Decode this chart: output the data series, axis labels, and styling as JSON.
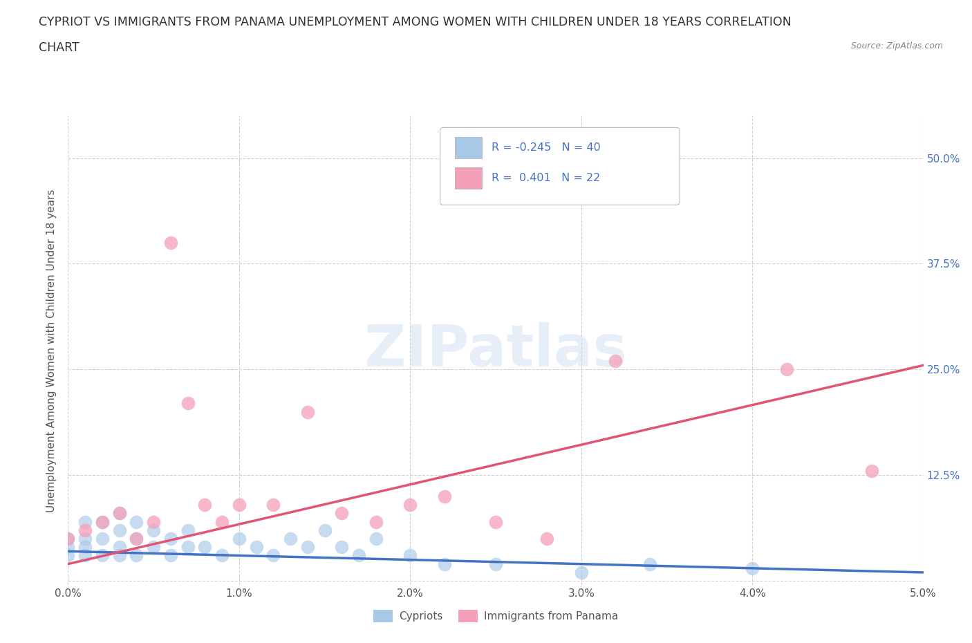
{
  "title_line1": "CYPRIOT VS IMMIGRANTS FROM PANAMA UNEMPLOYMENT AMONG WOMEN WITH CHILDREN UNDER 18 YEARS CORRELATION",
  "title_line2": "CHART",
  "source": "Source: ZipAtlas.com",
  "ylabel": "Unemployment Among Women with Children Under 18 years",
  "xlim": [
    0.0,
    0.05
  ],
  "ylim": [
    -0.005,
    0.55
  ],
  "xticks": [
    0.0,
    0.01,
    0.02,
    0.03,
    0.04,
    0.05
  ],
  "xticklabels": [
    "0.0%",
    "1.0%",
    "2.0%",
    "3.0%",
    "4.0%",
    "5.0%"
  ],
  "yticks": [
    0.0,
    0.125,
    0.25,
    0.375,
    0.5
  ],
  "yticklabels_right": [
    "",
    "12.5%",
    "25.0%",
    "37.5%",
    "50.0%"
  ],
  "cypriot_R": -0.245,
  "cypriot_N": 40,
  "panama_R": 0.401,
  "panama_N": 22,
  "cypriot_color": "#a8c8e8",
  "panama_color": "#f4a0b8",
  "cypriot_line_color": "#4472c4",
  "panama_line_color": "#e05575",
  "cypriot_scatter_x": [
    0.0,
    0.0,
    0.0,
    0.001,
    0.001,
    0.001,
    0.001,
    0.002,
    0.002,
    0.002,
    0.003,
    0.003,
    0.003,
    0.003,
    0.004,
    0.004,
    0.004,
    0.005,
    0.005,
    0.006,
    0.006,
    0.007,
    0.007,
    0.008,
    0.009,
    0.01,
    0.011,
    0.012,
    0.013,
    0.014,
    0.015,
    0.016,
    0.017,
    0.018,
    0.02,
    0.022,
    0.025,
    0.03,
    0.034,
    0.04
  ],
  "cypriot_scatter_y": [
    0.03,
    0.04,
    0.05,
    0.03,
    0.04,
    0.05,
    0.07,
    0.03,
    0.05,
    0.07,
    0.03,
    0.04,
    0.06,
    0.08,
    0.03,
    0.05,
    0.07,
    0.04,
    0.06,
    0.03,
    0.05,
    0.04,
    0.06,
    0.04,
    0.03,
    0.05,
    0.04,
    0.03,
    0.05,
    0.04,
    0.06,
    0.04,
    0.03,
    0.05,
    0.03,
    0.02,
    0.02,
    0.01,
    0.02,
    0.015
  ],
  "panama_scatter_x": [
    0.0,
    0.001,
    0.002,
    0.003,
    0.004,
    0.005,
    0.006,
    0.007,
    0.008,
    0.009,
    0.01,
    0.012,
    0.014,
    0.016,
    0.018,
    0.02,
    0.022,
    0.025,
    0.028,
    0.032,
    0.042,
    0.047
  ],
  "panama_scatter_y": [
    0.05,
    0.06,
    0.07,
    0.08,
    0.05,
    0.07,
    0.4,
    0.21,
    0.09,
    0.07,
    0.09,
    0.09,
    0.2,
    0.08,
    0.07,
    0.09,
    0.1,
    0.07,
    0.05,
    0.26,
    0.25,
    0.13
  ],
  "cypriot_line_x0": 0.0,
  "cypriot_line_x1": 0.05,
  "cypriot_line_y0": 0.035,
  "cypriot_line_y1": 0.01,
  "panama_line_x0": 0.0,
  "panama_line_x1": 0.05,
  "panama_line_y0": 0.02,
  "panama_line_y1": 0.255
}
